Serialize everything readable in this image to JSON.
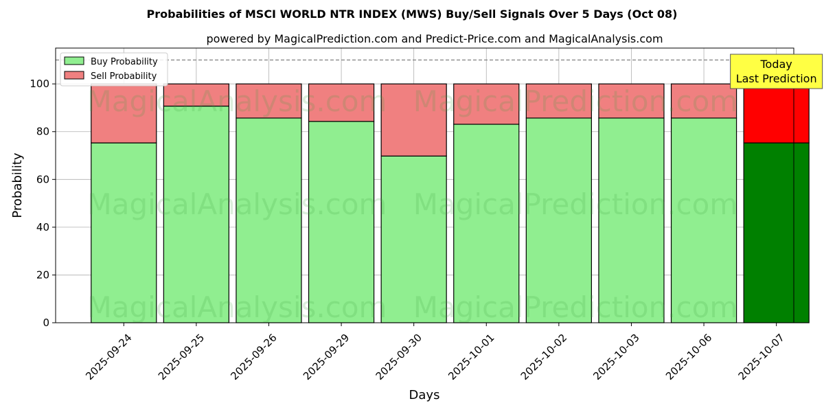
{
  "chart_data": {
    "type": "bar",
    "stacked": true,
    "title": "Probabilities of MSCI WORLD NTR INDEX (MWS) Buy/Sell Signals Over 5 Days (Oct 08)",
    "subtitle": "powered by MagicalPrediction.com and Predict-Price.com and MagicalAnalysis.com",
    "xlabel": "Days",
    "ylabel": "Probability",
    "ylim": [
      0,
      115
    ],
    "yticks": [
      0,
      20,
      40,
      60,
      80,
      100
    ],
    "grid": true,
    "legend_position": "top-left",
    "reference_line": 110,
    "categories": [
      "2025-09-24",
      "2025-09-25",
      "2025-09-26",
      "2025-09-29",
      "2025-09-30",
      "2025-10-01",
      "2025-10-02",
      "2025-10-03",
      "2025-10-06",
      "2025-10-07"
    ],
    "series": [
      {
        "name": "Buy Probability",
        "values": [
          75.3,
          90.7,
          85.7,
          84.3,
          69.8,
          83.1,
          85.7,
          85.7,
          85.7,
          75.3
        ],
        "color": "#90ee90",
        "highlight_color": "#008000"
      },
      {
        "name": "Sell Probability",
        "values": [
          24.7,
          9.3,
          14.3,
          15.7,
          30.2,
          16.9,
          14.3,
          14.3,
          14.3,
          24.7
        ],
        "color": "#f08080",
        "highlight_color": "#ff0000"
      }
    ],
    "annotation": {
      "lines": [
        "Today",
        "Last Prediction"
      ],
      "category": "2025-10-07",
      "color": "#ffff44"
    },
    "watermarks": [
      "MagicalAnalysis.com",
      "MagicalPrediction.com"
    ]
  }
}
